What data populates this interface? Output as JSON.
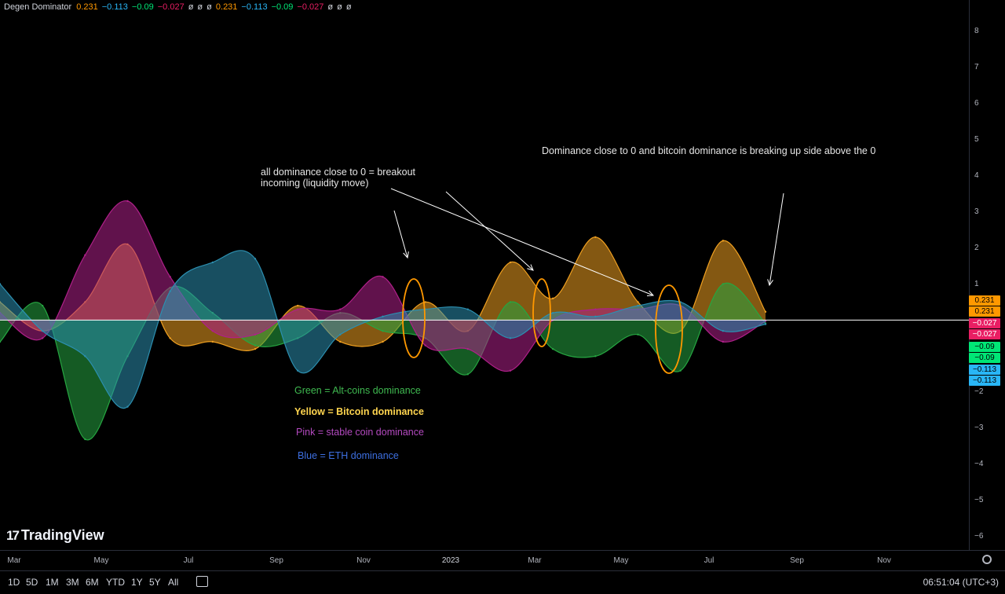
{
  "indicator": {
    "title": "Degen Dominator",
    "values": [
      {
        "text": "0.231",
        "color": "#ff9800"
      },
      {
        "text": "−0.113",
        "color": "#29b6f6"
      },
      {
        "text": "−0.09",
        "color": "#00e676"
      },
      {
        "text": "−0.027",
        "color": "#e91e63"
      },
      {
        "text": "ø",
        "color": "#d1d4dc"
      },
      {
        "text": "ø",
        "color": "#d1d4dc"
      },
      {
        "text": "ø",
        "color": "#d1d4dc"
      },
      {
        "text": "0.231",
        "color": "#ff9800"
      },
      {
        "text": "−0.113",
        "color": "#29b6f6"
      },
      {
        "text": "−0.09",
        "color": "#00e676"
      },
      {
        "text": "−0.027",
        "color": "#e91e63"
      },
      {
        "text": "ø",
        "color": "#d1d4dc"
      },
      {
        "text": "ø",
        "color": "#d1d4dc"
      },
      {
        "text": "ø",
        "color": "#d1d4dc"
      }
    ]
  },
  "annotations": {
    "note1_line1": "all dominance close to 0 = breakout",
    "note1_line2": "incoming (liquidity move)",
    "note2": "Dominance close to 0 and bitcoin dominance is breaking up side above the 0",
    "key_green": "Green = Alt-coins dominance",
    "key_yellow": "Yellow = Bitcoin dominance",
    "key_pink": "Pink = stable coin dominance",
    "key_blue": "Blue = ETH dominance"
  },
  "badges": [
    {
      "text": "0.231",
      "color": "#ff9800"
    },
    {
      "text": "0.231",
      "color": "#ff9800"
    },
    {
      "text": "−0.027",
      "color": "#e91e63"
    },
    {
      "text": "−0.027",
      "color": "#e91e63"
    },
    {
      "text": "−0.09",
      "color": "#00e676"
    },
    {
      "text": "−0.09",
      "color": "#00e676"
    },
    {
      "text": "−0.113",
      "color": "#29b6f6"
    },
    {
      "text": "−0.113",
      "color": "#29b6f6"
    }
  ],
  "logo": "TradingView",
  "timeframes": [
    "1D",
    "5D",
    "1M",
    "3M",
    "6M",
    "YTD",
    "1Y",
    "5Y",
    "All"
  ],
  "clock": "06:51:04 (UTC+3)",
  "colors": {
    "bitcoin": "#f0a020",
    "alts": "#26a641",
    "stable": "#b0208a",
    "eth": "#2c8fb0",
    "zero_line": "#ffffff",
    "circle": "#ff9800"
  },
  "chart_data": {
    "type": "area",
    "ylim": [
      -6.5,
      8.5
    ],
    "y_ticks": [
      "8",
      "7",
      "6",
      "5",
      "4",
      "3",
      "2",
      "1",
      "0",
      "−1",
      "−2",
      "−3",
      "−4",
      "−5",
      "−6"
    ],
    "x_tick_labels": [
      "Mar",
      "May",
      "Jul",
      "Sep",
      "Nov",
      "2023",
      "Mar",
      "May",
      "Jul",
      "Sep",
      "Nov"
    ],
    "x": [
      "2022-02",
      "2022-03",
      "2022-04",
      "2022-05",
      "2022-06",
      "2022-07",
      "2022-08",
      "2022-09",
      "2022-10",
      "2022-11",
      "2022-12",
      "2023-01",
      "2023-02",
      "2023-03",
      "2023-04",
      "2023-05",
      "2023-06",
      "2023-07",
      "2023-08"
    ],
    "series": [
      {
        "name": "Bitcoin dominance",
        "color": "#f0a020",
        "values": [
          0.5,
          -0.3,
          0.5,
          2.1,
          -0.5,
          -0.6,
          -0.8,
          0.4,
          -0.6,
          -0.6,
          0.5,
          -0.3,
          1.6,
          0.6,
          2.3,
          0.5,
          -0.3,
          2.2,
          0.231
        ]
      },
      {
        "name": "Alt-coins dominance",
        "color": "#26a641",
        "values": [
          -0.6,
          0.4,
          -3.3,
          -1.0,
          0.9,
          0.2,
          -0.7,
          -0.5,
          0.2,
          -0.3,
          -0.5,
          -1.5,
          0.5,
          -0.8,
          -1.0,
          -0.4,
          -1.4,
          1.0,
          -0.09
        ]
      },
      {
        "name": "stable coin dominance",
        "color": "#b0208a",
        "values": [
          0.2,
          -0.5,
          1.8,
          3.3,
          1.2,
          -0.3,
          -0.4,
          0.3,
          0.3,
          1.2,
          -0.7,
          -0.8,
          -1.4,
          0.0,
          0.3,
          0.3,
          0.4,
          -0.6,
          -0.027
        ]
      },
      {
        "name": "ETH dominance",
        "color": "#2c8fb0",
        "values": [
          1.0,
          -0.3,
          -1.0,
          -2.4,
          0.8,
          1.6,
          1.7,
          -1.4,
          -0.4,
          0.1,
          0.3,
          0.3,
          -0.5,
          0.2,
          0.1,
          0.4,
          0.5,
          -0.3,
          -0.113
        ]
      }
    ]
  }
}
